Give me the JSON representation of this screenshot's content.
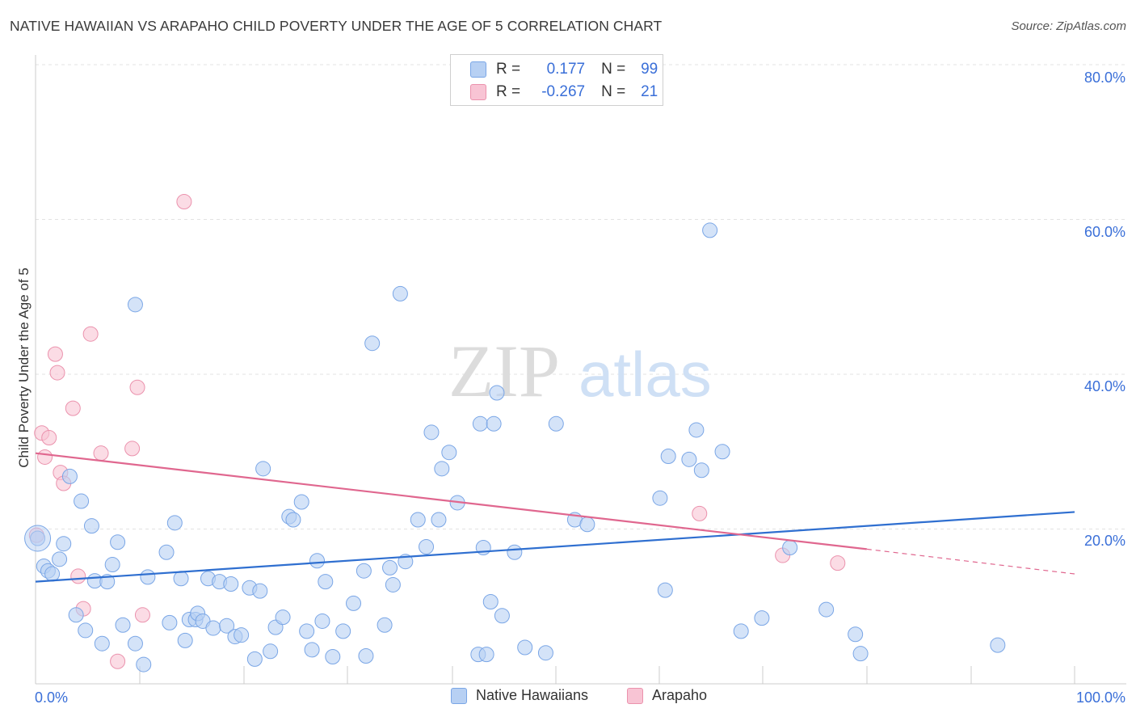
{
  "header": {
    "title": "NATIVE HAWAIIAN VS ARAPAHO CHILD POVERTY UNDER THE AGE OF 5 CORRELATION CHART",
    "source": "Source: ZipAtlas.com"
  },
  "watermark": {
    "left": "ZIP",
    "right": "atlas"
  },
  "legend_top": {
    "rows": [
      {
        "r_label": "R =",
        "r_value": "0.177",
        "n_label": "N =",
        "n_value": "99"
      },
      {
        "r_label": "R =",
        "r_value": "-0.267",
        "n_label": "N =",
        "n_value": "21"
      }
    ]
  },
  "legend_bottom": {
    "items": [
      "Native Hawaiians",
      "Arapaho"
    ]
  },
  "colors": {
    "blue_fill": "#b7d0f3",
    "blue_stroke": "#7aa6e6",
    "blue_line": "#2f6fd0",
    "pink_fill": "#f8c4d4",
    "pink_stroke": "#eb92ad",
    "pink_line": "#e0678f",
    "tick_text": "#3a6fd8",
    "grid": "#e3e3e3"
  },
  "chart_data": {
    "type": "scatter",
    "title": "NATIVE HAWAIIAN VS ARAPAHO CHILD POVERTY UNDER THE AGE OF 5 CORRELATION CHART",
    "xlabel": "",
    "ylabel": "Child Poverty Under the Age of 5",
    "xlim": [
      0,
      100
    ],
    "ylim": [
      0,
      80
    ],
    "x_tick_labels": [
      "0.0%",
      "100.0%"
    ],
    "y_ticks": [
      20,
      40,
      60,
      80
    ],
    "y_tick_labels": [
      "20.0%",
      "40.0%",
      "60.0%",
      "80.0%"
    ],
    "grid": true,
    "legend_position": "top-center",
    "series": [
      {
        "name": "Native Hawaiians",
        "r": 0.177,
        "n": 99,
        "trend": {
          "x0": 0,
          "y0": 13.2,
          "x1": 100,
          "y1": 22.2
        },
        "points": [
          [
            0.2,
            18.8
          ],
          [
            0.8,
            15.2
          ],
          [
            1.2,
            14.6
          ],
          [
            1.6,
            14.2
          ],
          [
            2.3,
            16.1
          ],
          [
            2.7,
            18.1
          ],
          [
            3.3,
            26.8
          ],
          [
            3.9,
            8.9
          ],
          [
            4.4,
            23.6
          ],
          [
            4.8,
            6.9
          ],
          [
            5.4,
            20.4
          ],
          [
            5.7,
            13.3
          ],
          [
            6.4,
            5.2
          ],
          [
            6.9,
            13.2
          ],
          [
            7.4,
            15.4
          ],
          [
            7.9,
            18.3
          ],
          [
            8.4,
            7.6
          ],
          [
            9.6,
            49.0
          ],
          [
            9.6,
            5.2
          ],
          [
            10.4,
            2.5
          ],
          [
            10.8,
            13.8
          ],
          [
            12.6,
            17.0
          ],
          [
            12.9,
            7.9
          ],
          [
            13.4,
            20.8
          ],
          [
            14.0,
            13.6
          ],
          [
            14.4,
            5.6
          ],
          [
            14.8,
            8.3
          ],
          [
            15.4,
            8.3
          ],
          [
            15.6,
            9.1
          ],
          [
            16.1,
            8.1
          ],
          [
            16.6,
            13.6
          ],
          [
            17.1,
            7.2
          ],
          [
            17.7,
            13.2
          ],
          [
            18.4,
            7.5
          ],
          [
            18.8,
            12.9
          ],
          [
            19.2,
            6.1
          ],
          [
            19.8,
            6.3
          ],
          [
            20.6,
            12.4
          ],
          [
            21.1,
            3.2
          ],
          [
            21.6,
            12.0
          ],
          [
            21.9,
            27.8
          ],
          [
            22.6,
            4.2
          ],
          [
            23.1,
            7.3
          ],
          [
            23.8,
            8.6
          ],
          [
            24.4,
            21.6
          ],
          [
            24.8,
            21.2
          ],
          [
            25.6,
            23.5
          ],
          [
            26.1,
            6.8
          ],
          [
            26.6,
            4.4
          ],
          [
            27.1,
            15.9
          ],
          [
            27.6,
            8.1
          ],
          [
            27.9,
            13.2
          ],
          [
            28.6,
            3.5
          ],
          [
            29.6,
            6.8
          ],
          [
            30.6,
            10.4
          ],
          [
            31.6,
            14.6
          ],
          [
            31.8,
            3.6
          ],
          [
            32.4,
            44.0
          ],
          [
            33.6,
            7.6
          ],
          [
            34.1,
            15.0
          ],
          [
            34.4,
            12.8
          ],
          [
            35.1,
            50.4
          ],
          [
            35.6,
            15.8
          ],
          [
            36.8,
            21.2
          ],
          [
            37.6,
            17.7
          ],
          [
            38.1,
            32.5
          ],
          [
            38.8,
            21.2
          ],
          [
            39.1,
            27.8
          ],
          [
            39.8,
            29.9
          ],
          [
            40.6,
            23.4
          ],
          [
            42.6,
            3.8
          ],
          [
            42.8,
            33.6
          ],
          [
            43.1,
            17.6
          ],
          [
            43.4,
            3.8
          ],
          [
            43.8,
            10.6
          ],
          [
            44.1,
            33.6
          ],
          [
            44.4,
            37.6
          ],
          [
            44.9,
            8.8
          ],
          [
            46.1,
            17.0
          ],
          [
            47.1,
            4.7
          ],
          [
            49.1,
            4.0
          ],
          [
            50.1,
            33.6
          ],
          [
            51.9,
            21.2
          ],
          [
            53.1,
            20.6
          ],
          [
            60.1,
            24.0
          ],
          [
            60.6,
            12.1
          ],
          [
            60.9,
            29.4
          ],
          [
            62.9,
            29.0
          ],
          [
            63.6,
            32.8
          ],
          [
            64.1,
            27.6
          ],
          [
            64.9,
            58.6
          ],
          [
            66.1,
            30.0
          ],
          [
            67.9,
            6.8
          ],
          [
            69.9,
            8.5
          ],
          [
            72.6,
            17.6
          ],
          [
            76.1,
            9.6
          ],
          [
            78.9,
            6.4
          ],
          [
            79.4,
            3.9
          ],
          [
            92.6,
            5.0
          ]
        ]
      },
      {
        "name": "Arapaho",
        "r": -0.267,
        "n": 21,
        "trend": {
          "x0": 0,
          "y0": 29.8,
          "x1": 80,
          "y1": 17.4
        },
        "trend_extension": {
          "x0": 80,
          "y0": 17.4,
          "x1": 100,
          "y1": 14.2
        },
        "points": [
          [
            0.1,
            19.2
          ],
          [
            0.6,
            32.4
          ],
          [
            0.9,
            29.3
          ],
          [
            1.3,
            31.8
          ],
          [
            1.9,
            42.6
          ],
          [
            2.1,
            40.2
          ],
          [
            2.4,
            27.3
          ],
          [
            2.7,
            25.9
          ],
          [
            3.6,
            35.6
          ],
          [
            4.1,
            13.9
          ],
          [
            4.6,
            9.7
          ],
          [
            5.3,
            45.2
          ],
          [
            6.3,
            29.8
          ],
          [
            7.9,
            2.9
          ],
          [
            9.3,
            30.4
          ],
          [
            9.8,
            38.3
          ],
          [
            10.3,
            8.9
          ],
          [
            14.3,
            62.3
          ],
          [
            63.9,
            22.0
          ],
          [
            71.9,
            16.6
          ],
          [
            77.2,
            15.6
          ]
        ]
      }
    ]
  }
}
